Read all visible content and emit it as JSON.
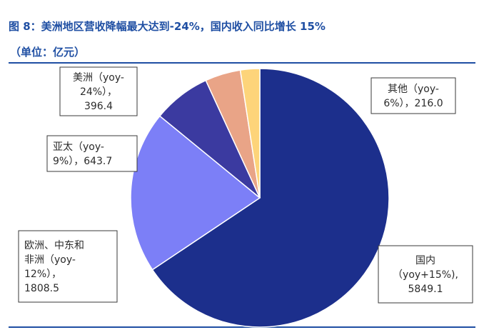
{
  "colors": {
    "title": "#1f4fa3",
    "rule": "#1f4fa3",
    "slice_1": "#1c2f8c",
    "slice_2": "#7c7ff7",
    "slice_3": "#3b3aa0",
    "slice_4": "#e9a487",
    "slice_5": "#fdd47a",
    "label_border": "#3a3a3a",
    "label_text": "#2b2b2b"
  },
  "chart_data": {
    "type": "pie",
    "title": "图 8：美洲地区营收降幅最大达到-24%，国内收入同比增长 15%",
    "subtitle": "（单位：亿元）",
    "categories": [
      "国内",
      "欧洲、中东和非洲",
      "亚太",
      "美洲",
      "其他"
    ],
    "values": [
      5849.1,
      1808.5,
      643.7,
      396.4,
      216.0
    ],
    "labels": [
      [
        "国内",
        "（yoy+15%),",
        "5849.1"
      ],
      [
        "欧洲、中东和",
        "非洲（yoy-",
        "12%），",
        "1808.5"
      ],
      [
        "亚太（yoy-",
        "9%），643.7"
      ],
      [
        "美洲（yoy-",
        "24%），",
        "396.4"
      ],
      [
        "其他（yoy-",
        "6%），216.0"
      ]
    ],
    "legend": "none"
  }
}
